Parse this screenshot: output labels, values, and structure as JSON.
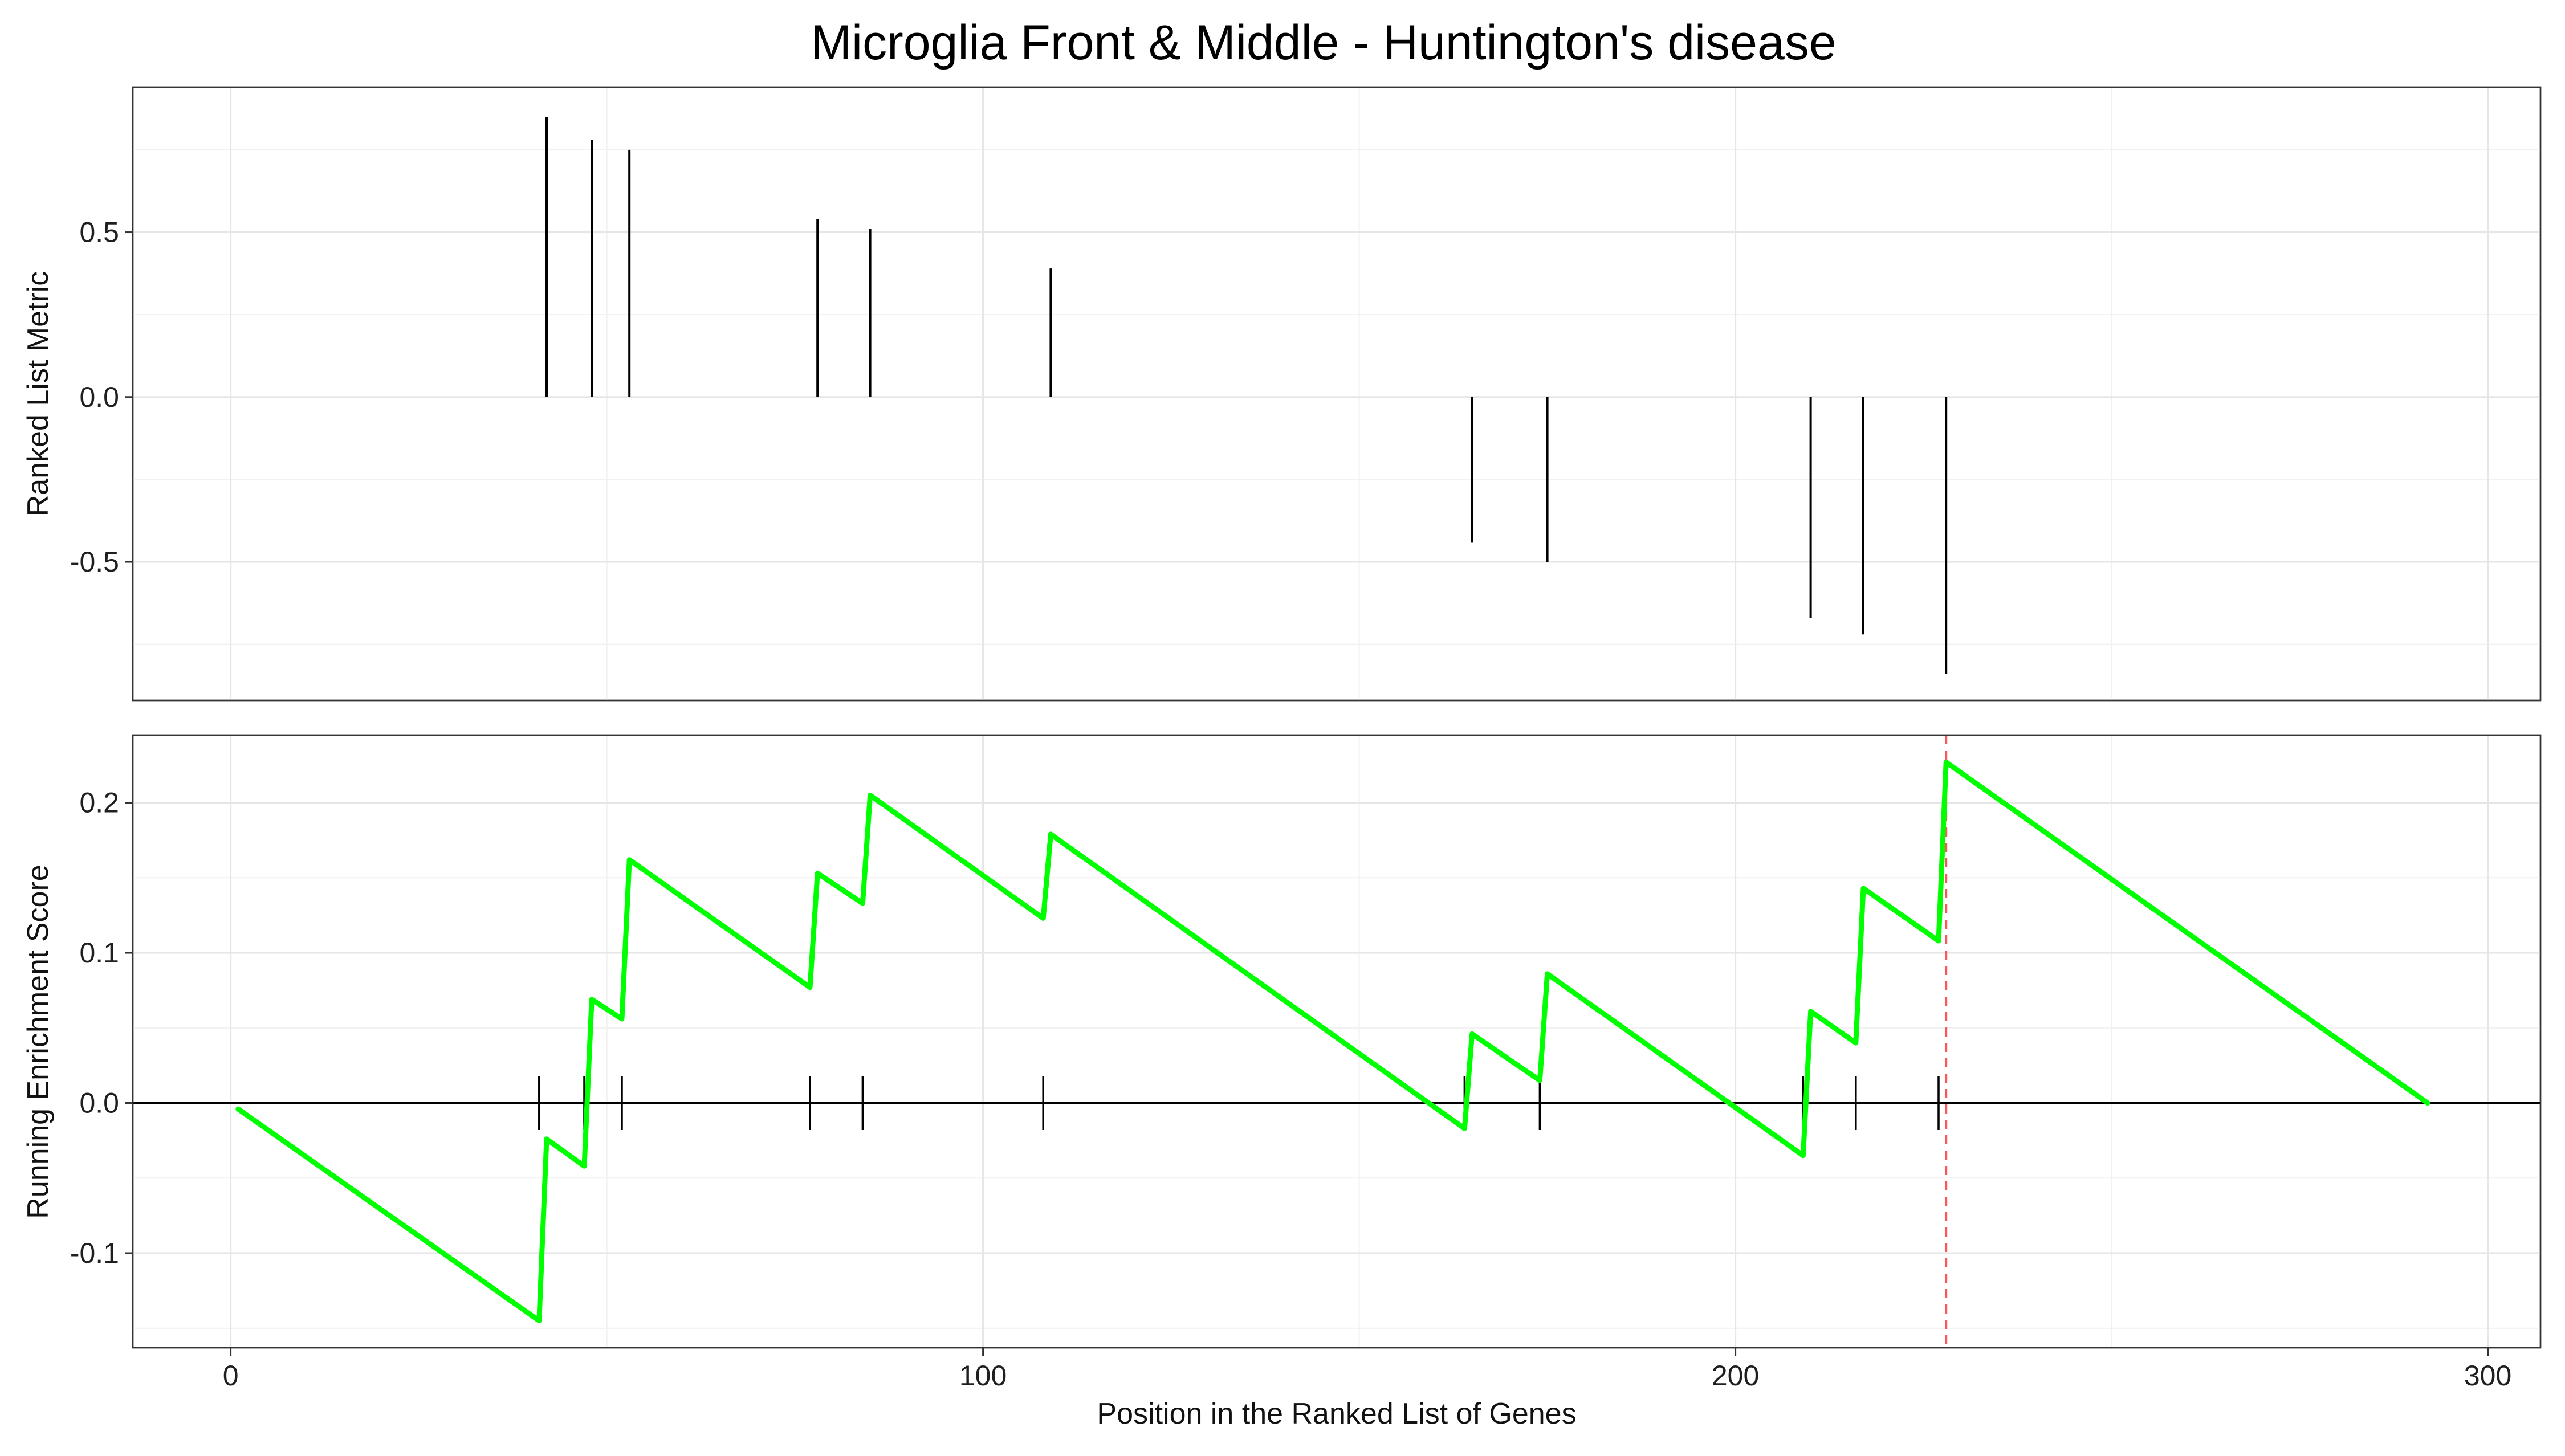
{
  "chart_data": [
    {
      "type": "bar",
      "title": "Microglia Front & Middle - Huntington's disease",
      "xlabel": "",
      "ylabel": "Ranked List Metric",
      "xlim": [
        -13,
        307
      ],
      "ylim": [
        -0.92,
        0.94
      ],
      "xticks": [
        0,
        100,
        200,
        300
      ],
      "yticks": [
        -0.5,
        0.0,
        0.5
      ],
      "ytick_labels": [
        "-0.5",
        "0.0",
        "0.5"
      ],
      "grid": true,
      "x": [
        42,
        48,
        53,
        78,
        85,
        109,
        165,
        175,
        210,
        217,
        228
      ],
      "values": [
        0.85,
        0.78,
        0.75,
        0.54,
        0.51,
        0.39,
        -0.44,
        -0.5,
        -0.67,
        -0.72,
        -0.84
      ],
      "color": "#000000"
    },
    {
      "type": "line",
      "xlabel": "Position in the Ranked List of Genes",
      "ylabel": "Running Enrichment Score",
      "xlim": [
        -13,
        307
      ],
      "ylim": [
        -0.163,
        0.245
      ],
      "xticks": [
        0,
        100,
        200,
        300
      ],
      "xtick_labels": [
        "0",
        "100",
        "200",
        "300"
      ],
      "yticks": [
        -0.1,
        0.0,
        0.1,
        0.2
      ],
      "ytick_labels": [
        "-0.1",
        "0.0",
        "0.1",
        "0.2"
      ],
      "grid": true,
      "series": [
        {
          "color": "#00ff00",
          "x": [
            1,
            41,
            42,
            47,
            48,
            52,
            53,
            77,
            78,
            84,
            85,
            108,
            109,
            164,
            165,
            174,
            175,
            209,
            210,
            216,
            217,
            227,
            228,
            292
          ],
          "y": [
            -0.004,
            -0.145,
            -0.024,
            -0.042,
            0.069,
            0.056,
            0.162,
            0.077,
            0.153,
            0.133,
            0.205,
            0.123,
            0.179,
            -0.017,
            0.046,
            0.015,
            0.086,
            -0.035,
            0.061,
            0.04,
            0.143,
            0.108,
            0.227,
            0.0
          ]
        }
      ],
      "hits": [
        41,
        47,
        52,
        77,
        84,
        108,
        164,
        174,
        209,
        216,
        227
      ],
      "max_es_position": 228,
      "max_es_line_color": "#ff5555",
      "zero_line": true
    }
  ]
}
